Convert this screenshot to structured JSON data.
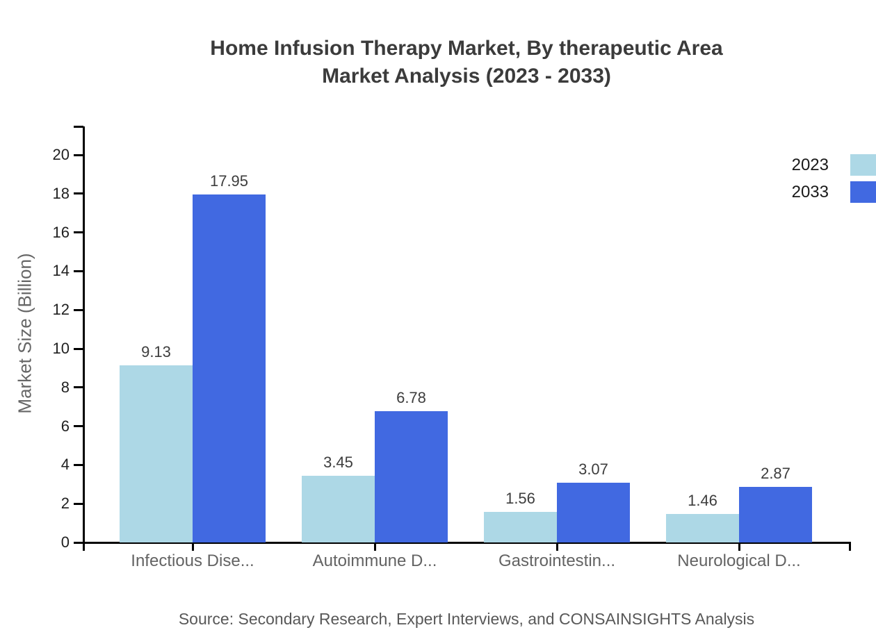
{
  "title": {
    "line1": "Home Infusion Therapy Market, By therapeutic Area",
    "line2": "Market Analysis (2023 - 2033)"
  },
  "y_axis": {
    "label": "Market Size (Billion)",
    "tick_labels": [
      "0",
      "2",
      "4",
      "6",
      "8",
      "10",
      "12",
      "14",
      "16",
      "18",
      "20"
    ]
  },
  "legend": {
    "items": [
      {
        "label": "2023",
        "color": "#ADD8E6"
      },
      {
        "label": "2033",
        "color": "#4169E1"
      }
    ]
  },
  "source": "Source: Secondary Research, Expert Interviews, and CONSAINSIGHTS Analysis",
  "chart_data": {
    "type": "bar",
    "title": "Home Infusion Therapy Market, By therapeutic Area Market Analysis (2023 - 2033)",
    "categories": [
      "Infectious Dise...",
      "Autoimmune D...",
      "Gastrointestin...",
      "Neurological D..."
    ],
    "series": [
      {
        "name": "2023",
        "color": "#ADD8E6",
        "values": [
          9.13,
          3.45,
          1.56,
          1.46
        ]
      },
      {
        "name": "2033",
        "color": "#4169E1",
        "values": [
          17.95,
          6.78,
          3.07,
          2.87
        ]
      }
    ],
    "xlabel": "",
    "ylabel": "Market Size (Billion)",
    "ylim": [
      0,
      21.5
    ],
    "ytick_step": 2,
    "grid": false,
    "legend_position": "top-right",
    "value_labels": true
  }
}
